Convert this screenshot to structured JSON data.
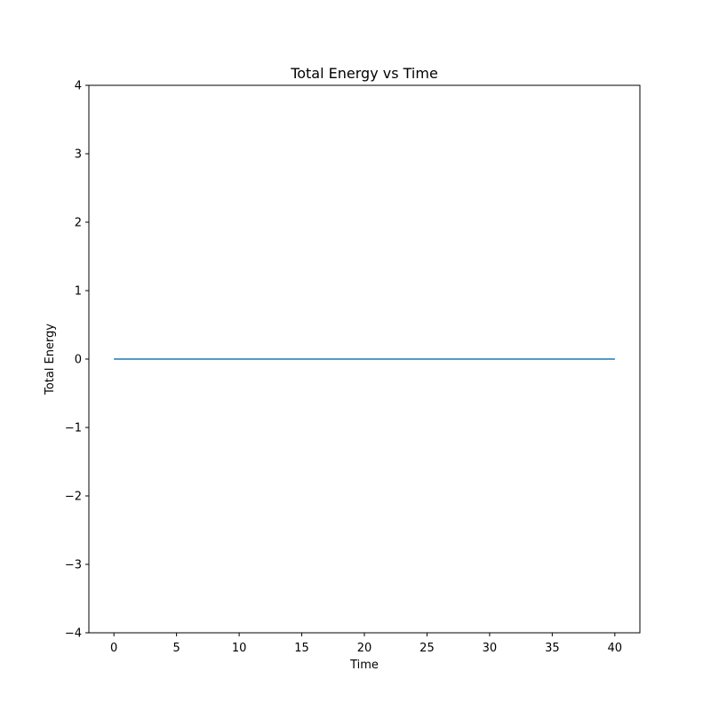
{
  "chart_data": {
    "type": "line",
    "title": "Total Energy vs Time",
    "xlabel": "Time",
    "ylabel": "Total Energy",
    "xlim": [
      -2,
      42
    ],
    "ylim": [
      -4,
      4
    ],
    "x_ticks": [
      0,
      5,
      10,
      15,
      20,
      25,
      30,
      35,
      40
    ],
    "y_ticks": [
      -4,
      -3,
      -2,
      -1,
      0,
      1,
      2,
      3,
      4
    ],
    "x_tick_labels": [
      "0",
      "5",
      "10",
      "15",
      "20",
      "25",
      "30",
      "35",
      "40"
    ],
    "y_tick_labels": [
      "−4",
      "−3",
      "−2",
      "−1",
      "0",
      "1",
      "2",
      "3",
      "4"
    ],
    "grid": false,
    "legend": "none",
    "series": [
      {
        "color": "#1f77b4",
        "x": [
          0,
          5,
          10,
          15,
          20,
          25,
          30,
          35,
          40
        ],
        "y": [
          0,
          0,
          0,
          0,
          0,
          0,
          0,
          0,
          0
        ]
      }
    ]
  }
}
